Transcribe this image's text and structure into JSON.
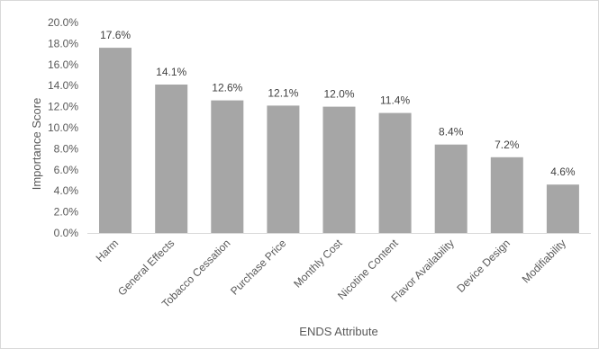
{
  "chart_data": {
    "type": "bar",
    "title": "",
    "xlabel": "ENDS Attribute",
    "ylabel": "Importance Score",
    "categories": [
      "Harm",
      "General Effects",
      "Tobacco Cessation",
      "Purchase Price",
      "Monthly Cost",
      "Nicotine Content",
      "Flavor Availability",
      "Device Design",
      "Modifiability"
    ],
    "values": [
      17.6,
      14.1,
      12.6,
      12.1,
      12.0,
      11.4,
      8.4,
      7.2,
      4.6
    ],
    "data_labels": [
      "17.6%",
      "14.1%",
      "12.6%",
      "12.1%",
      "12.0%",
      "11.4%",
      "8.4%",
      "7.2%",
      "4.6%"
    ],
    "ylim": [
      0,
      20
    ],
    "yticks": [
      "0.0%",
      "2.0%",
      "4.0%",
      "6.0%",
      "8.0%",
      "10.0%",
      "12.0%",
      "14.0%",
      "16.0%",
      "18.0%",
      "20.0%"
    ],
    "grid": false,
    "legend": "none",
    "bar_color": "#a6a6a6",
    "axis_color": "#d9d9d9"
  }
}
